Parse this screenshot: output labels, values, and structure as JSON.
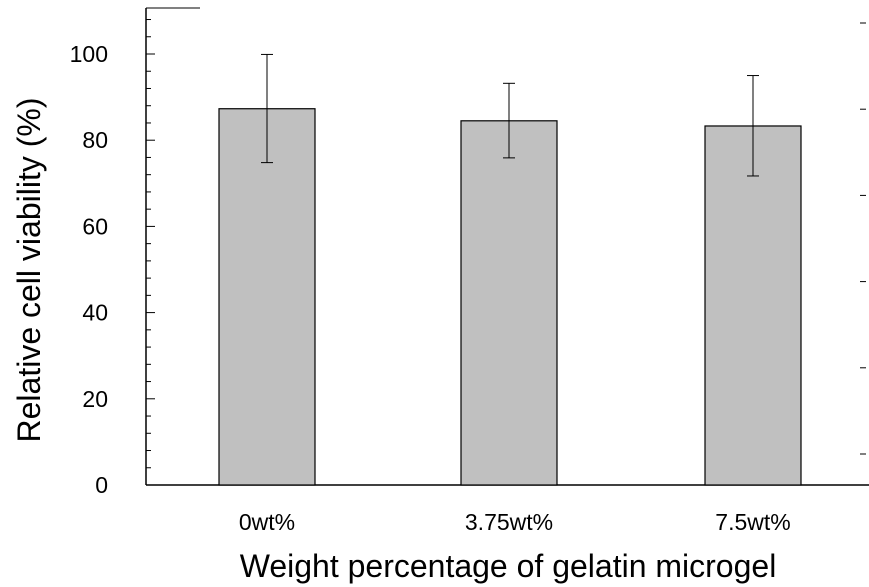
{
  "chart_data": {
    "type": "bar",
    "title": "",
    "xlabel": "Weight percentage of gelatin microgel",
    "ylabel": "Relative cell viability (%)",
    "ylim": [
      0,
      100
    ],
    "yticks": [
      0,
      20,
      40,
      60,
      80,
      100
    ],
    "categories": [
      "0wt%",
      "3.75wt%",
      "7.5wt%"
    ],
    "values": [
      87.3,
      84.5,
      83.3
    ],
    "error_low": [
      74.8,
      75.9,
      71.7
    ],
    "error_high": [
      99.9,
      93.2,
      95.0
    ],
    "grid": false,
    "legend": "none",
    "bar_color": "#c0c0c0",
    "edge_color": "#000000"
  }
}
